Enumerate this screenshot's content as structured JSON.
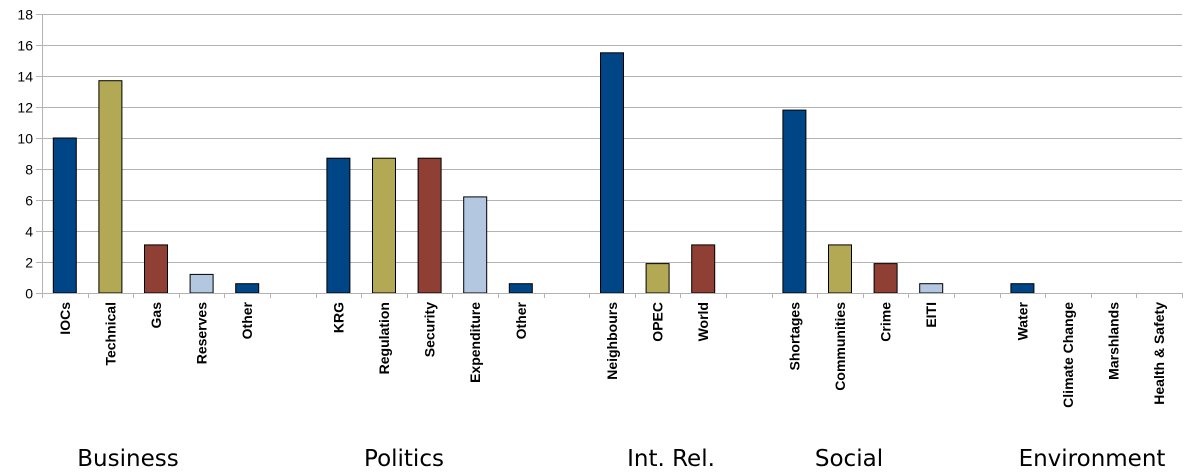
{
  "chart_data": {
    "type": "bar",
    "ylim": [
      0,
      18
    ],
    "yticks": [
      0,
      2,
      4,
      6,
      8,
      10,
      12,
      14,
      16,
      18
    ],
    "grid": true,
    "colors": {
      "navy": "#004586",
      "olive": "#b3a853",
      "brown": "#8f3f33",
      "lightblue": "#b3c8e0",
      "grid": "#b3b3b3",
      "axis": "#b3b3b3",
      "bar_outline": "#000000"
    },
    "groups": [
      {
        "label": "Business",
        "bars": [
          {
            "category": "IOCs",
            "value": 10,
            "color": "navy"
          },
          {
            "category": "Technical",
            "value": 13.7,
            "color": "olive"
          },
          {
            "category": "Gas",
            "value": 3.1,
            "color": "brown"
          },
          {
            "category": "Reserves",
            "value": 1.2,
            "color": "lightblue"
          },
          {
            "category": "Other",
            "value": 0.6,
            "color": "navy"
          }
        ]
      },
      {
        "label": "Politics",
        "bars": [
          {
            "category": "KRG",
            "value": 8.7,
            "color": "navy"
          },
          {
            "category": "Regulation",
            "value": 8.7,
            "color": "olive"
          },
          {
            "category": "Security",
            "value": 8.7,
            "color": "brown"
          },
          {
            "category": "Expenditure",
            "value": 6.2,
            "color": "lightblue"
          },
          {
            "category": "Other",
            "value": 0.6,
            "color": "navy"
          }
        ]
      },
      {
        "label": "Int. Rel.",
        "bars": [
          {
            "category": "Neighbours",
            "value": 15.5,
            "color": "navy"
          },
          {
            "category": "OPEC",
            "value": 1.9,
            "color": "olive"
          },
          {
            "category": "World",
            "value": 3.1,
            "color": "brown"
          }
        ]
      },
      {
        "label": "Social",
        "bars": [
          {
            "category": "Shortages",
            "value": 11.8,
            "color": "navy"
          },
          {
            "category": "Communities",
            "value": 3.1,
            "color": "olive"
          },
          {
            "category": "Crime",
            "value": 1.9,
            "color": "brown"
          },
          {
            "category": "EITI",
            "value": 0.6,
            "color": "lightblue"
          }
        ]
      },
      {
        "label": "Environment",
        "bars": [
          {
            "category": "Water",
            "value": 0.6,
            "color": "navy"
          },
          {
            "category": "Climate Change",
            "value": 0,
            "color": "olive"
          },
          {
            "category": "Marshlands",
            "value": 0,
            "color": "brown"
          },
          {
            "category": "Health & Safety",
            "value": 0,
            "color": "lightblue"
          }
        ]
      }
    ]
  }
}
